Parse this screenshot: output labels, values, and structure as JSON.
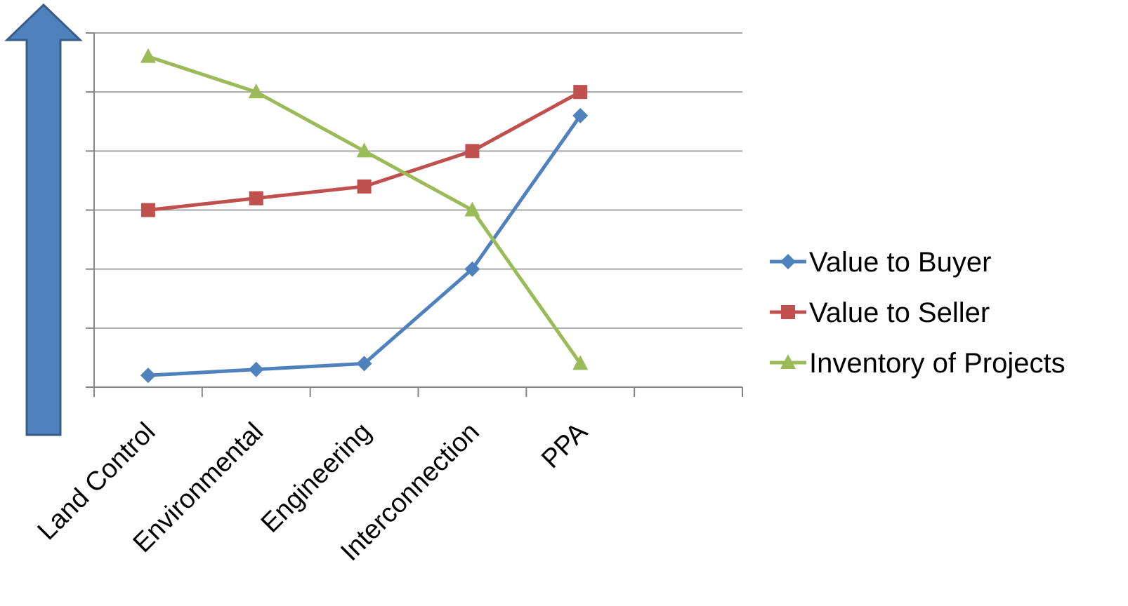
{
  "chart_data": {
    "type": "line",
    "title": "",
    "xlabel": "",
    "ylabel": "",
    "categories": [
      "Land Control",
      "Environmental",
      "Engineering",
      "Interconnection",
      "PPA"
    ],
    "category_slots": 6,
    "ylim": [
      0,
      6
    ],
    "grid": true,
    "y_tick_labels_shown": false,
    "legend_position": "right",
    "series": [
      {
        "name": "Value to Buyer",
        "values": [
          0.2,
          0.3,
          0.4,
          2.0,
          4.6
        ],
        "color": "#4f81bd",
        "marker": "diamond"
      },
      {
        "name": "Value to Seller",
        "values": [
          3.0,
          3.2,
          3.4,
          4.0,
          5.0
        ],
        "color": "#c0504d",
        "marker": "square"
      },
      {
        "name": "Inventory of Projects",
        "values": [
          5.6,
          5.0,
          4.0,
          3.0,
          0.4
        ],
        "color": "#9bbb59",
        "marker": "triangle"
      }
    ],
    "side_arrow": {
      "direction": "up",
      "color": "#4f81bd",
      "outline": "#385d8a"
    },
    "gridline_color": "#a6a6a6",
    "axis_color": "#868686"
  }
}
